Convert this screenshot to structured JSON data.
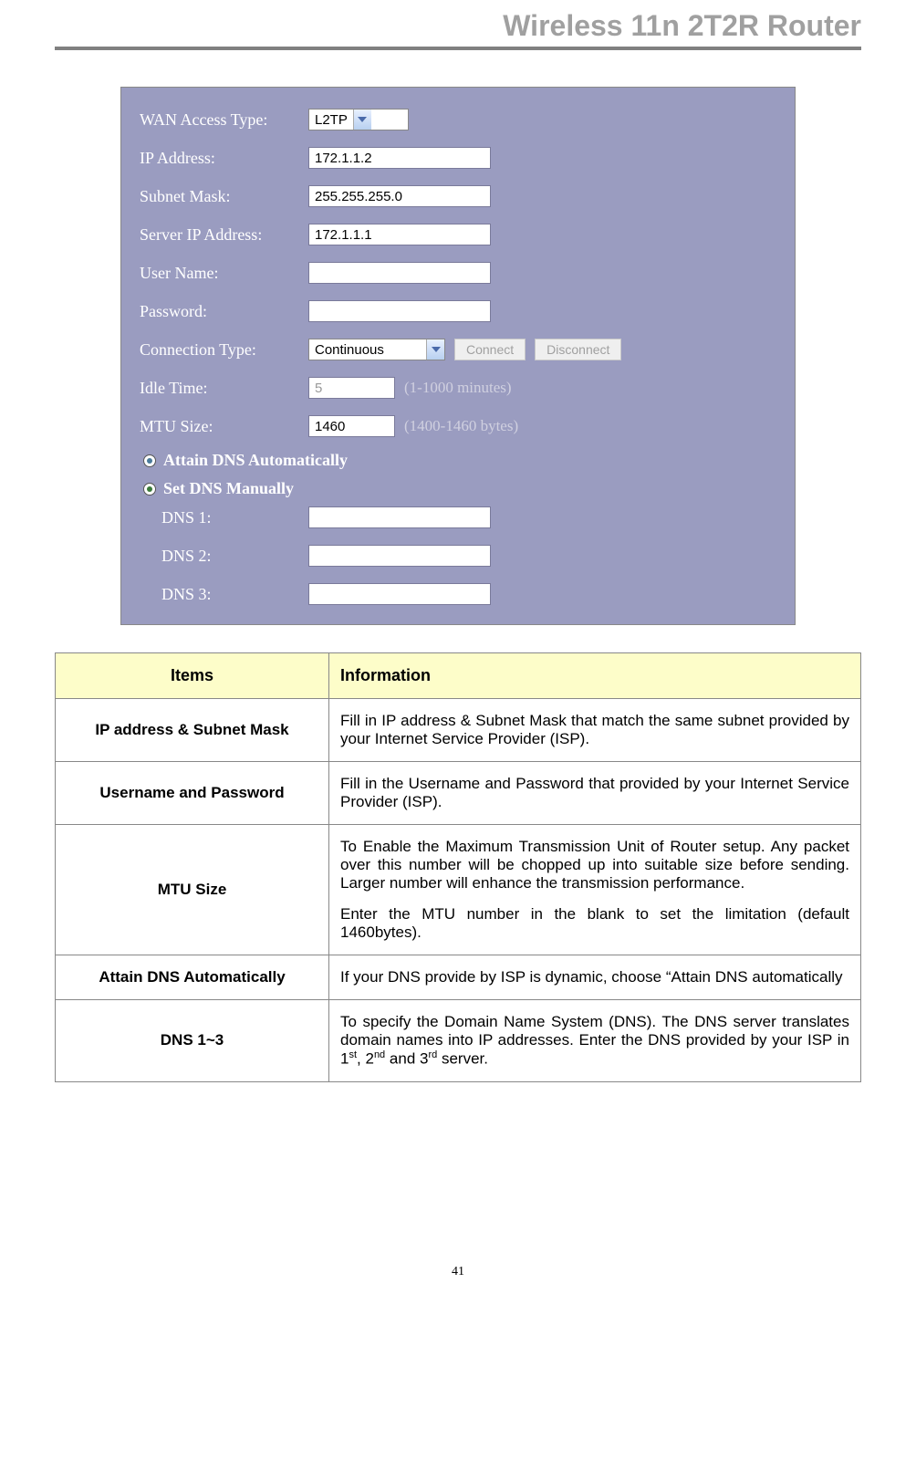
{
  "header": {
    "title": "Wireless 11n 2T2R Router"
  },
  "panel": {
    "bg_color": "#9a9cc0",
    "wan_access_type": {
      "label": "WAN Access Type:",
      "value": "L2TP"
    },
    "ip_address": {
      "label": "IP Address:",
      "value": "172.1.1.2"
    },
    "subnet_mask": {
      "label": "Subnet Mask:",
      "value": "255.255.255.0"
    },
    "server_ip": {
      "label": "Server IP Address:",
      "value": "172.1.1.1"
    },
    "username": {
      "label": "User Name:",
      "value": ""
    },
    "password": {
      "label": "Password:",
      "value": ""
    },
    "connection_type": {
      "label": "Connection Type:",
      "value": "Continuous",
      "connect": "Connect",
      "disconnect": "Disconnect"
    },
    "idle_time": {
      "label": "Idle Time:",
      "value": "5",
      "hint": "(1-1000 minutes)"
    },
    "mtu_size": {
      "label": "MTU Size:",
      "value": "1460",
      "hint": "(1400-1460 bytes)"
    },
    "dns_auto": {
      "label": "Attain DNS Automatically",
      "selected": false
    },
    "dns_manual": {
      "label": "Set DNS Manually",
      "selected": true
    },
    "dns1": {
      "label": "DNS 1:",
      "value": ""
    },
    "dns2": {
      "label": "DNS 2:",
      "value": ""
    },
    "dns3": {
      "label": "DNS 3:",
      "value": ""
    }
  },
  "table": {
    "header_bg": "#fdfdc9",
    "columns": [
      "Items",
      "Information"
    ],
    "rows": [
      {
        "item": "IP address & Subnet Mask",
        "info": "Fill in IP address & Subnet Mask that match the same subnet provided by your Internet Service Provider (ISP)."
      },
      {
        "item": "Username and Password",
        "info": "Fill in the Username and Password that provided by your Internet Service Provider (ISP)."
      },
      {
        "item": "MTU Size",
        "info_p1": "To Enable the Maximum Transmission Unit of Router setup. Any packet over this number will be chopped up into suitable size before sending. Larger number will enhance the transmission performance.",
        "info_p2": "Enter the MTU number in the blank to set the limitation (default 1460bytes)."
      },
      {
        "item": "Attain DNS Automatically",
        "info": "If your DNS provide by ISP is dynamic, choose “Attain DNS automatically"
      },
      {
        "item": "DNS 1~3",
        "info_html": "To specify the Domain Name System (DNS). The DNS server translates domain names into IP addresses. Enter the DNS provided by your ISP in 1<sup>st</sup>, 2<sup>nd</sup> and 3<sup>rd</sup> server."
      }
    ]
  },
  "page_number": "41"
}
